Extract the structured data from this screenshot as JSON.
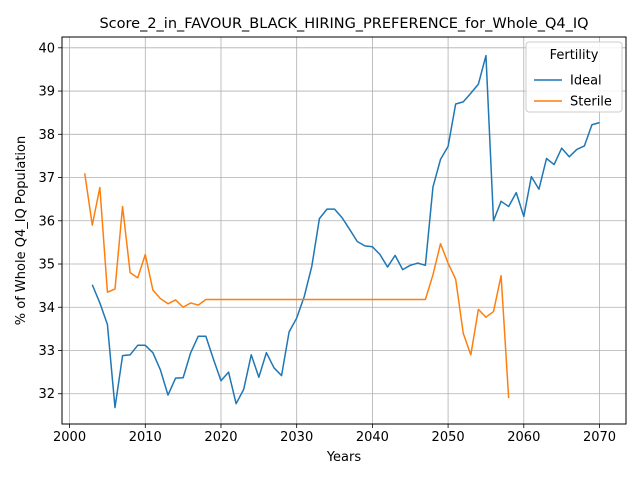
{
  "chart_data": {
    "type": "line",
    "title": "Score_2_in_FAVOUR_BLACK_HIRING_PREFERENCE_for_Whole_Q4_IQ",
    "xlabel": "Years",
    "ylabel": "% of Whole Q4_IQ Population",
    "xlim": [
      1999,
      2073.5
    ],
    "ylim": [
      31.3,
      40.25
    ],
    "xticks": [
      2000,
      2010,
      2020,
      2030,
      2040,
      2050,
      2060,
      2070
    ],
    "yticks": [
      32,
      33,
      34,
      35,
      36,
      37,
      38,
      39,
      40
    ],
    "grid": true,
    "legend": {
      "title": "Fertility",
      "position": "top-right"
    },
    "series": [
      {
        "name": "Ideal",
        "color": "#1f77b4",
        "x": [
          2003,
          2004,
          2005,
          2006,
          2007,
          2008,
          2009,
          2010,
          2011,
          2012,
          2013,
          2014,
          2015,
          2016,
          2017,
          2018,
          2019,
          2020,
          2021,
          2022,
          2023,
          2024,
          2025,
          2026,
          2027,
          2028,
          2029,
          2030,
          2031,
          2032,
          2033,
          2034,
          2035,
          2036,
          2037,
          2038,
          2039,
          2040,
          2041,
          2042,
          2043,
          2044,
          2045,
          2046,
          2047,
          2048,
          2049,
          2050,
          2051,
          2052,
          2053,
          2054,
          2055,
          2056,
          2057,
          2058,
          2059,
          2060,
          2061,
          2062,
          2063,
          2064,
          2065,
          2066,
          2067,
          2068,
          2069,
          2070
        ],
        "y": [
          34.52,
          34.1,
          33.6,
          31.68,
          32.88,
          32.9,
          33.12,
          33.12,
          32.95,
          32.55,
          31.97,
          32.36,
          32.37,
          32.95,
          33.33,
          33.33,
          32.8,
          32.3,
          32.5,
          31.77,
          32.1,
          32.9,
          32.38,
          32.95,
          32.6,
          32.42,
          33.43,
          33.75,
          34.25,
          34.95,
          36.05,
          36.27,
          36.27,
          36.07,
          35.8,
          35.52,
          35.42,
          35.4,
          35.22,
          34.93,
          35.2,
          34.87,
          34.97,
          35.02,
          34.97,
          36.78,
          37.42,
          37.72,
          38.7,
          38.75,
          38.95,
          39.16,
          39.82,
          36.0,
          36.45,
          36.33,
          36.65,
          36.1,
          37.02,
          36.73,
          37.44,
          37.3,
          37.68,
          37.48,
          37.65,
          37.73,
          38.22,
          38.27
        ]
      },
      {
        "name": "Sterile",
        "color": "#ff7f0e",
        "x": [
          2002,
          2003,
          2004,
          2005,
          2006,
          2007,
          2008,
          2009,
          2010,
          2011,
          2012,
          2013,
          2014,
          2015,
          2016,
          2017,
          2018,
          2019,
          2020,
          2021,
          2022,
          2023,
          2024,
          2025,
          2026,
          2027,
          2028,
          2029,
          2030,
          2031,
          2032,
          2033,
          2034,
          2035,
          2036,
          2037,
          2038,
          2039,
          2040,
          2041,
          2042,
          2043,
          2044,
          2045,
          2046,
          2047,
          2048,
          2049,
          2050,
          2051,
          2052,
          2053,
          2054,
          2055,
          2056,
          2057,
          2058
        ],
        "y": [
          37.1,
          35.9,
          36.77,
          34.35,
          34.42,
          36.33,
          34.8,
          34.68,
          35.22,
          34.4,
          34.2,
          34.08,
          34.17,
          34.0,
          34.1,
          34.05,
          34.18,
          34.18,
          34.18,
          34.18,
          34.18,
          34.18,
          34.18,
          34.18,
          34.18,
          34.18,
          34.18,
          34.18,
          34.18,
          34.18,
          34.18,
          34.18,
          34.18,
          34.18,
          34.18,
          34.18,
          34.18,
          34.18,
          34.18,
          34.18,
          34.18,
          34.18,
          34.18,
          34.18,
          34.18,
          34.18,
          34.75,
          35.47,
          35.02,
          34.65,
          33.4,
          32.9,
          33.95,
          33.77,
          33.9,
          34.73,
          31.9
        ]
      }
    ]
  }
}
